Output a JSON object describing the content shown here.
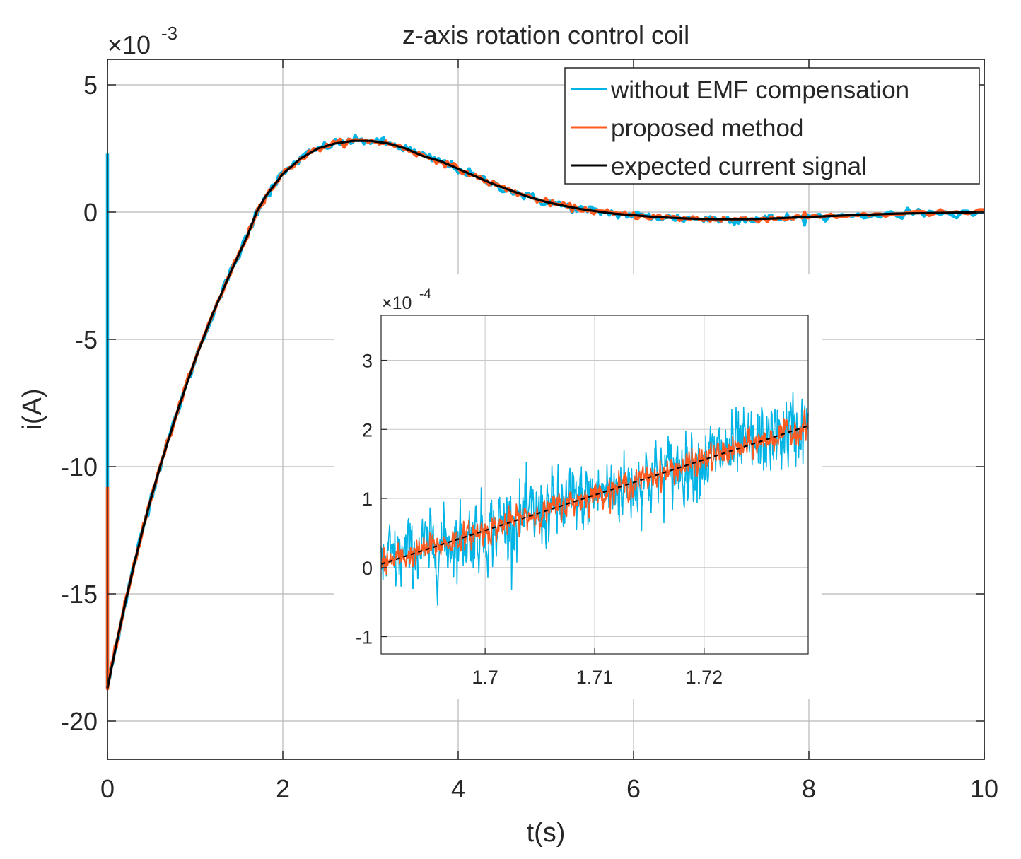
{
  "chart_data": [
    {
      "id": "main",
      "type": "line",
      "title": "z-axis rotation control coil",
      "xlabel": "t(s)",
      "ylabel": "i(A)",
      "y_exponent_label": "×10",
      "y_exponent_power": "-3",
      "y_scale": 0.001,
      "xlim": [
        0,
        10
      ],
      "ylim": [
        -21.5,
        6
      ],
      "xticks": [
        0,
        2,
        4,
        6,
        8,
        10
      ],
      "xtick_labels": [
        "0",
        "2",
        "4",
        "6",
        "8",
        "10"
      ],
      "yticks": [
        5,
        0,
        -5,
        -10,
        -15,
        -20
      ],
      "ytick_labels": [
        "5",
        "0",
        "-5",
        "-10",
        "-15",
        "-20"
      ],
      "grid": true,
      "legend_position": "top-right",
      "series": [
        {
          "name": "without EMF compensation",
          "color": "#00b4e6",
          "initial_spike": [
            0,
            2.3
          ],
          "x": [
            0,
            0.1,
            0.2,
            0.3,
            0.4,
            0.5,
            0.6,
            0.8,
            1.0,
            1.2,
            1.4,
            1.6,
            1.7,
            1.8,
            2.0,
            2.2,
            2.4,
            2.6,
            2.8,
            3.0,
            3.2,
            3.4,
            3.6,
            3.8,
            4.0,
            4.2,
            4.4,
            4.6,
            4.8,
            5.0,
            5.2,
            5.4,
            5.6,
            5.8,
            6.0,
            6.2,
            6.4,
            6.6,
            6.8,
            7.0,
            7.2,
            7.4,
            7.6,
            7.8,
            8.0,
            8.5,
            9.0,
            9.5,
            10.0
          ],
          "values": [
            -18.7,
            -17.0,
            -15.4,
            -13.9,
            -12.5,
            -11.2,
            -10.0,
            -7.8,
            -5.8,
            -4.0,
            -2.4,
            -0.9,
            0.0,
            0.6,
            1.5,
            2.1,
            2.5,
            2.7,
            2.8,
            2.8,
            2.7,
            2.5,
            2.2,
            2.0,
            1.7,
            1.4,
            1.1,
            0.85,
            0.6,
            0.4,
            0.25,
            0.12,
            0.02,
            -0.07,
            -0.12,
            -0.18,
            -0.22,
            -0.25,
            -0.27,
            -0.28,
            -0.28,
            -0.27,
            -0.25,
            -0.22,
            -0.19,
            -0.12,
            -0.06,
            -0.03,
            0.0
          ]
        },
        {
          "name": "proposed method",
          "color": "#ff5a1f",
          "initial_spike": [
            0,
            -10.8
          ],
          "x": [
            0,
            0.1,
            0.2,
            0.3,
            0.4,
            0.5,
            0.6,
            0.8,
            1.0,
            1.2,
            1.4,
            1.6,
            1.7,
            1.8,
            2.0,
            2.2,
            2.4,
            2.6,
            2.8,
            3.0,
            3.2,
            3.4,
            3.6,
            3.8,
            4.0,
            4.2,
            4.4,
            4.6,
            4.8,
            5.0,
            5.2,
            5.4,
            5.6,
            5.8,
            6.0,
            6.2,
            6.4,
            6.6,
            6.8,
            7.0,
            7.2,
            7.4,
            7.6,
            7.8,
            8.0,
            8.5,
            9.0,
            9.5,
            10.0
          ],
          "values": [
            -18.7,
            -17.0,
            -15.4,
            -13.9,
            -12.5,
            -11.2,
            -10.0,
            -7.8,
            -5.8,
            -4.0,
            -2.4,
            -0.9,
            0.0,
            0.6,
            1.5,
            2.1,
            2.5,
            2.7,
            2.8,
            2.8,
            2.7,
            2.5,
            2.2,
            2.0,
            1.7,
            1.4,
            1.1,
            0.85,
            0.6,
            0.4,
            0.25,
            0.12,
            0.02,
            -0.07,
            -0.12,
            -0.18,
            -0.22,
            -0.25,
            -0.27,
            -0.28,
            -0.28,
            -0.27,
            -0.25,
            -0.22,
            -0.19,
            -0.12,
            -0.06,
            -0.03,
            0.0
          ]
        },
        {
          "name": "expected current signal",
          "color": "#000000",
          "x": [
            0,
            0.1,
            0.2,
            0.3,
            0.4,
            0.5,
            0.6,
            0.8,
            1.0,
            1.2,
            1.4,
            1.6,
            1.7,
            1.8,
            2.0,
            2.2,
            2.4,
            2.6,
            2.8,
            3.0,
            3.2,
            3.4,
            3.6,
            3.8,
            4.0,
            4.2,
            4.4,
            4.6,
            4.8,
            5.0,
            5.2,
            5.4,
            5.6,
            5.8,
            6.0,
            6.2,
            6.4,
            6.6,
            6.8,
            7.0,
            7.2,
            7.4,
            7.6,
            7.8,
            8.0,
            8.5,
            9.0,
            9.5,
            10.0
          ],
          "values": [
            -18.7,
            -17.0,
            -15.4,
            -13.9,
            -12.5,
            -11.2,
            -10.0,
            -7.8,
            -5.8,
            -4.0,
            -2.4,
            -0.9,
            0.0,
            0.6,
            1.5,
            2.1,
            2.5,
            2.7,
            2.8,
            2.8,
            2.7,
            2.5,
            2.2,
            2.0,
            1.7,
            1.4,
            1.1,
            0.85,
            0.6,
            0.4,
            0.25,
            0.12,
            0.02,
            -0.07,
            -0.12,
            -0.18,
            -0.22,
            -0.25,
            -0.27,
            -0.28,
            -0.28,
            -0.27,
            -0.25,
            -0.22,
            -0.19,
            -0.12,
            -0.06,
            -0.03,
            0.0
          ]
        }
      ]
    },
    {
      "id": "inset",
      "type": "line",
      "title": "",
      "y_exponent_label": "×10",
      "y_exponent_power": "-4",
      "y_scale": 0.0001,
      "xlim": [
        1.6905,
        1.7295
      ],
      "ylim": [
        -1.25,
        3.65
      ],
      "xticks": [
        1.7,
        1.71,
        1.72
      ],
      "xtick_labels": [
        "1.7",
        "1.71",
        "1.72"
      ],
      "yticks": [
        3,
        2,
        1,
        0,
        -1
      ],
      "ytick_labels": [
        "3",
        "2",
        "1",
        "0",
        "-1"
      ],
      "grid": true,
      "series": [
        {
          "name": "without EMF compensation",
          "color": "#00b4e6",
          "x": [
            1.6905,
            1.7295
          ],
          "values": [
            0.05,
            2.05
          ],
          "noise_amplitude": 0.6
        },
        {
          "name": "proposed method",
          "color": "#ff5a1f",
          "x": [
            1.6905,
            1.7295
          ],
          "values": [
            0.05,
            2.05
          ],
          "noise_amplitude": 0.22
        },
        {
          "name": "expected current signal",
          "color": "#000000",
          "x": [
            1.6905,
            1.7295
          ],
          "values": [
            0.05,
            2.05
          ],
          "dashed": true
        }
      ]
    }
  ]
}
